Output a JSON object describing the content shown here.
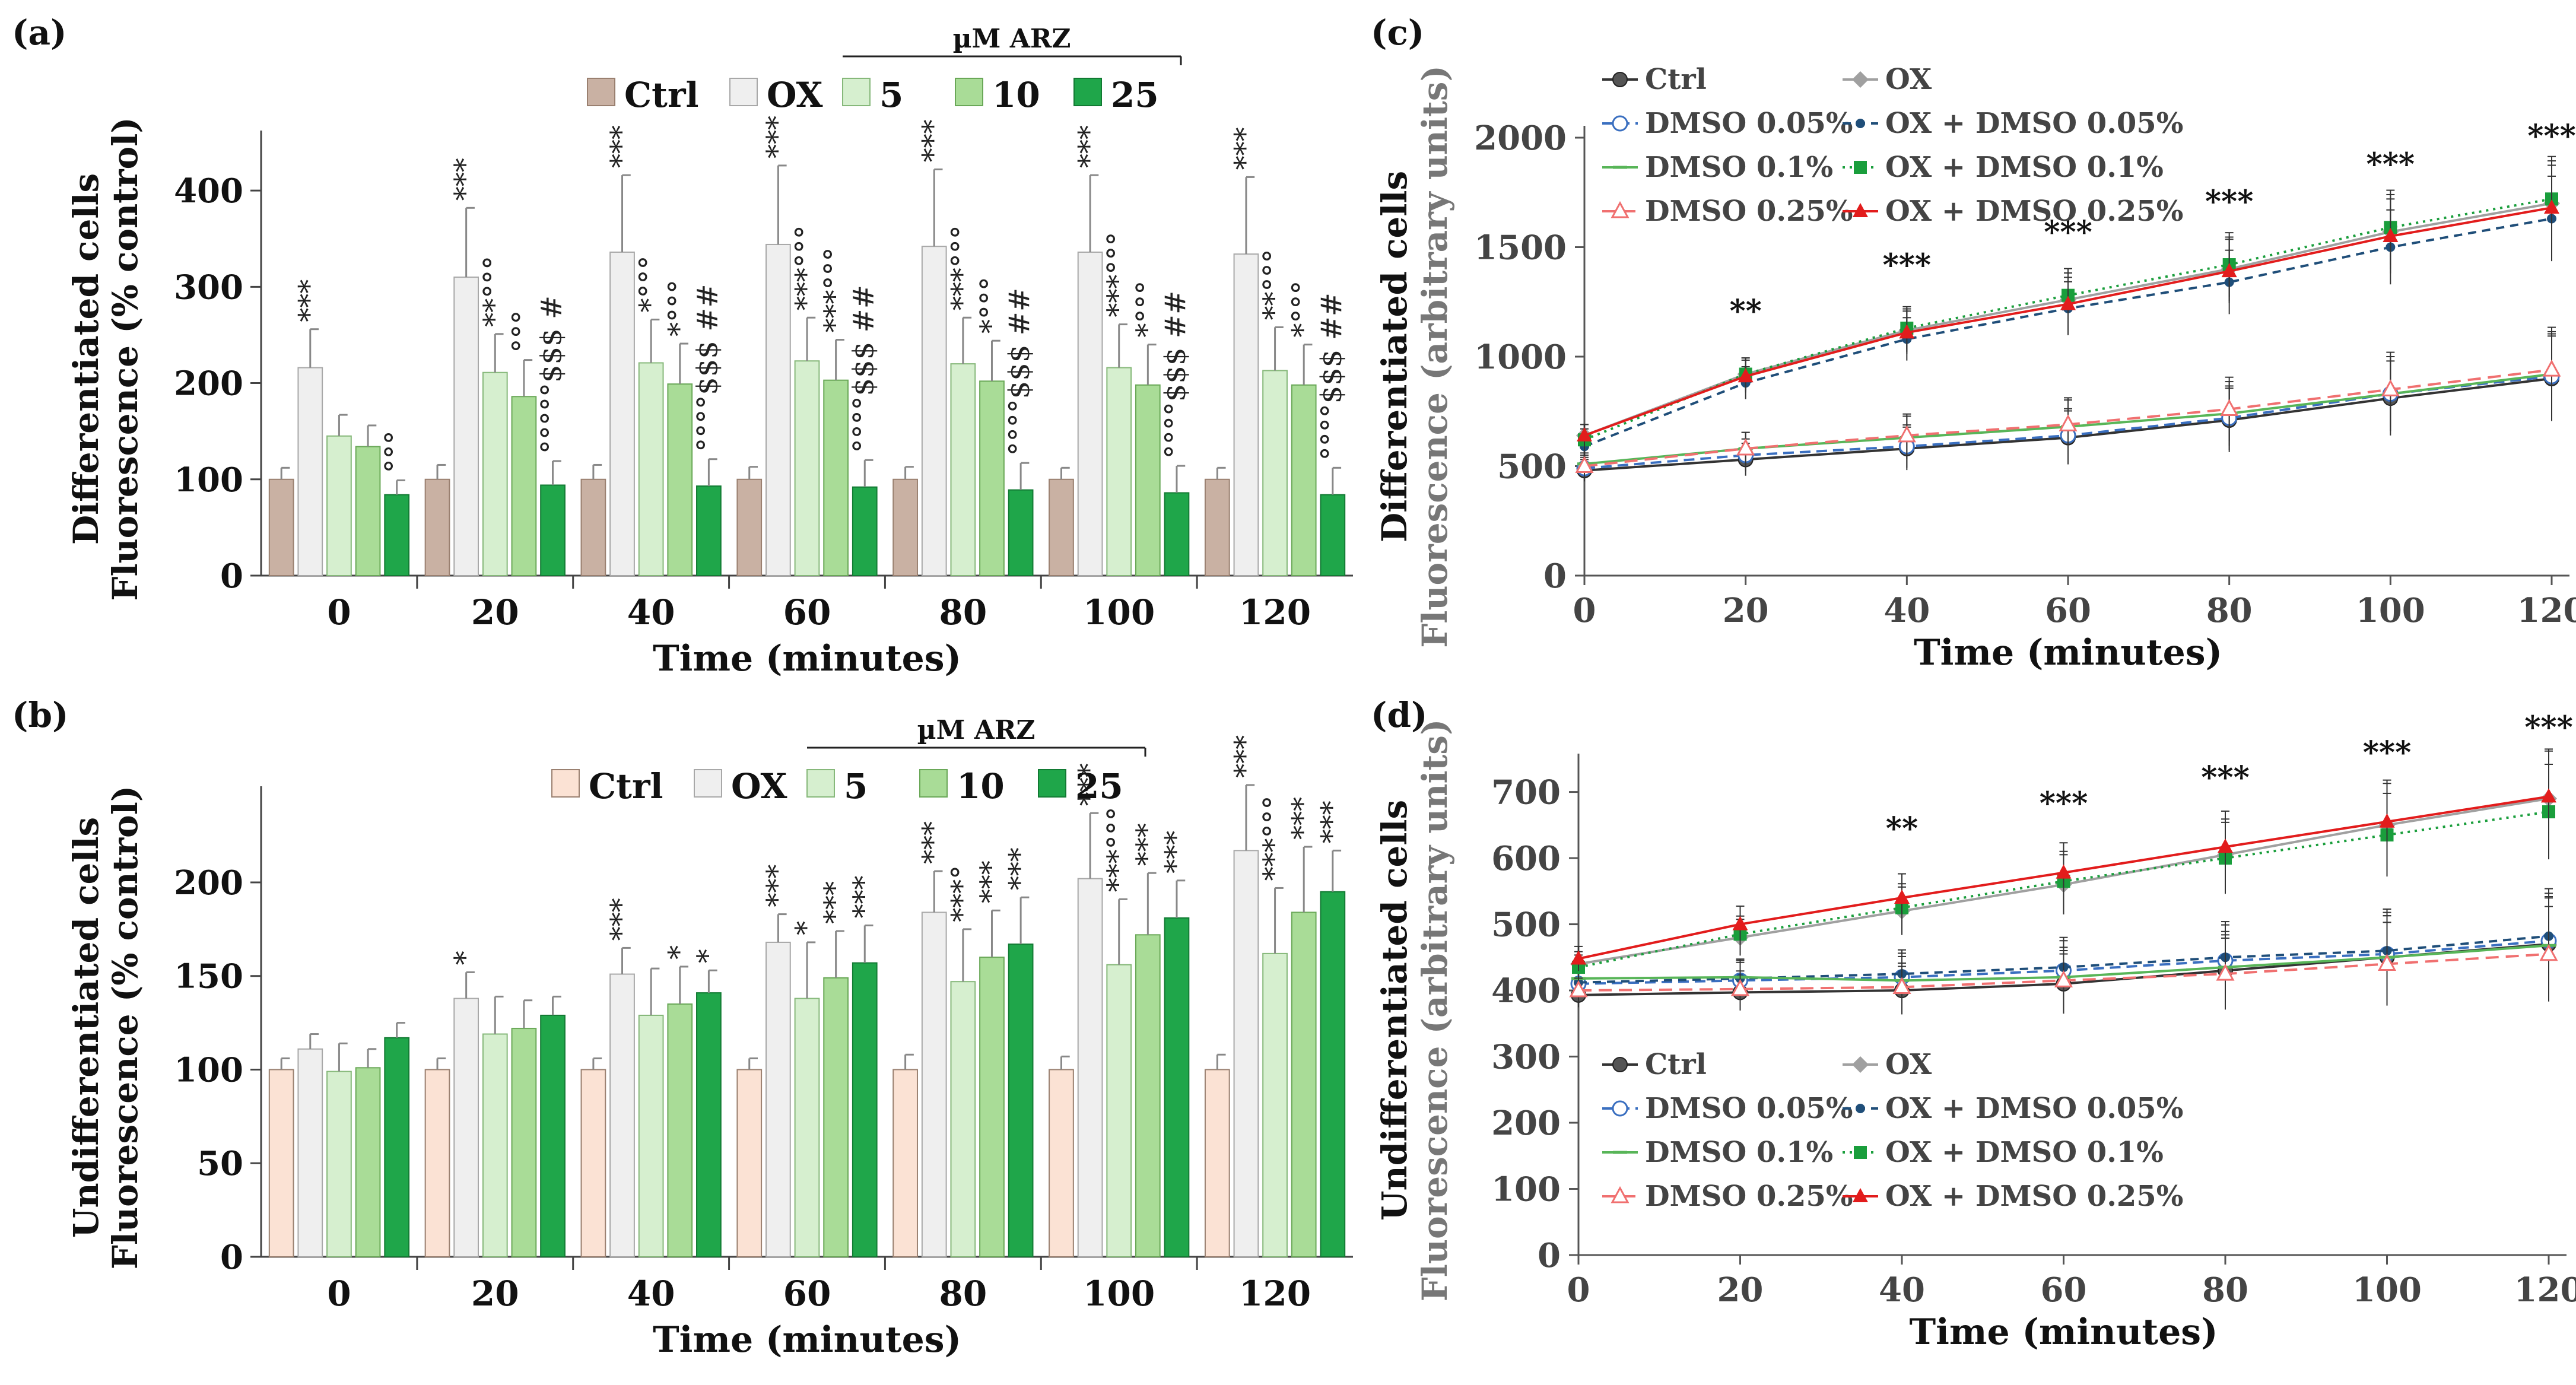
{
  "chart_data": [
    {
      "panel": "(a)",
      "type": "bar",
      "ylabel_lines": [
        "Differentiated cells",
        "Fluorescence (% control)"
      ],
      "xlabel": "Time (minutes)",
      "ylim": [
        0,
        450
      ],
      "yticks": [
        0,
        100,
        200,
        300,
        400
      ],
      "categories": [
        "0",
        "20",
        "40",
        "60",
        "80",
        "100",
        "120"
      ],
      "arz_label": "µM ARZ",
      "legend": [
        "Ctrl",
        "OX",
        "5",
        "10",
        "25"
      ],
      "series": [
        {
          "name": "Ctrl",
          "values": [
            100,
            100,
            100,
            100,
            100,
            100,
            100
          ],
          "errors": [
            12,
            15,
            15,
            13,
            13,
            12,
            12
          ]
        },
        {
          "name": "OX",
          "values": [
            216,
            310,
            336,
            344,
            342,
            336,
            334
          ],
          "errors": [
            40,
            72,
            80,
            82,
            80,
            80,
            80
          ]
        },
        {
          "name": "5",
          "values": [
            145,
            211,
            221,
            223,
            220,
            216,
            213
          ],
          "errors": [
            22,
            40,
            45,
            45,
            48,
            45,
            45
          ]
        },
        {
          "name": "10",
          "values": [
            134,
            186,
            199,
            203,
            202,
            198,
            198
          ],
          "errors": [
            22,
            38,
            42,
            42,
            42,
            42,
            42
          ]
        },
        {
          "name": "25",
          "values": [
            84,
            94,
            93,
            92,
            89,
            86,
            84
          ],
          "errors": [
            15,
            25,
            28,
            28,
            28,
            28,
            28
          ]
        }
      ],
      "annotations": [
        [
          "",
          "***",
          "",
          "",
          "°°°"
        ],
        [
          "",
          "***",
          "**°°°",
          "°°°",
          "°°°°°$$$ #"
        ],
        [
          "",
          "***",
          "*°°°",
          "*°°°",
          "°°°°$$$ ##"
        ],
        [
          "",
          "***",
          "***°°°",
          "***°°°",
          "°°°°$$$ ##"
        ],
        [
          "",
          "***",
          "***°°°",
          "*°°°",
          "°°°°$$$ ##"
        ],
        [
          "",
          "***",
          "***°°°",
          "*°°°",
          "°°°°$$$ ##"
        ],
        [
          "",
          "***",
          "**°°°",
          "*°°°",
          "°°°°$$$ ##"
        ]
      ]
    },
    {
      "panel": "(b)",
      "type": "bar",
      "ylabel_lines": [
        "Undifferentiated cells",
        "Fluorescence (% control)"
      ],
      "xlabel": "Time (minutes)",
      "ylim": [
        0,
        245
      ],
      "yticks": [
        0,
        50,
        100,
        150,
        200
      ],
      "categories": [
        "0",
        "20",
        "40",
        "60",
        "80",
        "100",
        "120"
      ],
      "arz_label": "µM ARZ",
      "legend": [
        "Ctrl",
        "OX",
        "5",
        "10",
        "25"
      ],
      "series": [
        {
          "name": "Ctrl",
          "values": [
            100,
            100,
            100,
            100,
            100,
            100,
            100
          ],
          "errors": [
            6,
            6,
            6,
            6,
            8,
            7,
            8
          ]
        },
        {
          "name": "OX",
          "values": [
            111,
            138,
            151,
            168,
            184,
            202,
            217
          ],
          "errors": [
            8,
            14,
            14,
            15,
            22,
            35,
            35
          ]
        },
        {
          "name": "5",
          "values": [
            99,
            119,
            129,
            138,
            147,
            156,
            162
          ],
          "errors": [
            15,
            20,
            25,
            30,
            28,
            35,
            35
          ]
        },
        {
          "name": "10",
          "values": [
            101,
            122,
            135,
            149,
            160,
            172,
            184
          ],
          "errors": [
            10,
            15,
            20,
            25,
            25,
            33,
            35
          ]
        },
        {
          "name": "25",
          "values": [
            117,
            129,
            141,
            157,
            167,
            181,
            195
          ],
          "errors": [
            8,
            10,
            12,
            20,
            25,
            20,
            22
          ]
        }
      ],
      "annotations": [
        [
          "",
          "",
          "",
          "",
          ""
        ],
        [
          "",
          "*",
          "",
          "",
          ""
        ],
        [
          "",
          "***",
          "",
          "*",
          "*"
        ],
        [
          "",
          "***",
          "*",
          "***",
          "***"
        ],
        [
          "",
          "***",
          "***°",
          "***",
          "***"
        ],
        [
          "",
          "***",
          "***°°°",
          "***",
          "***"
        ],
        [
          "",
          "***",
          "***°°°",
          "***",
          "***"
        ]
      ]
    },
    {
      "panel": "(c)",
      "type": "line",
      "ylabel_lines": [
        "Differentiated cells",
        "Fluorescence (arbitrary units)"
      ],
      "xlabel": "Time (minutes)",
      "x": [
        0,
        20,
        40,
        60,
        80,
        100,
        120
      ],
      "ylim": [
        0,
        2000
      ],
      "yticks": [
        0,
        500,
        1000,
        1500,
        2000
      ],
      "xticks": [
        0,
        20,
        40,
        60,
        80,
        100,
        120
      ],
      "series": [
        {
          "name": "Ctrl",
          "values": [
            480,
            530,
            580,
            630,
            710,
            810,
            900
          ]
        },
        {
          "name": "OX",
          "values": [
            640,
            920,
            1120,
            1260,
            1400,
            1570,
            1700
          ]
        },
        {
          "name": "DMSO 0.05%",
          "values": [
            490,
            550,
            590,
            640,
            720,
            830,
            910
          ]
        },
        {
          "name": "OX + DMSO 0.05%",
          "values": [
            590,
            880,
            1080,
            1220,
            1340,
            1500,
            1630
          ]
        },
        {
          "name": "DMSO 0.1%",
          "values": [
            510,
            580,
            630,
            680,
            740,
            830,
            920
          ]
        },
        {
          "name": "OX + DMSO 0.1%",
          "values": [
            620,
            920,
            1130,
            1280,
            1420,
            1590,
            1720
          ]
        },
        {
          "name": "DMSO 0.25%",
          "values": [
            500,
            580,
            640,
            690,
            760,
            850,
            940
          ]
        },
        {
          "name": "OX + DMSO 0.25%",
          "values": [
            640,
            910,
            1110,
            1240,
            1390,
            1550,
            1680
          ]
        }
      ],
      "sig_labels": [
        "",
        "**",
        "***",
        "***",
        "***",
        "***",
        "***"
      ]
    },
    {
      "panel": "(d)",
      "type": "line",
      "ylabel_lines": [
        "Undifferentiated cells",
        "Fluorescence (arbitrary units)"
      ],
      "xlabel": "Time (minutes)",
      "x": [
        0,
        20,
        40,
        60,
        80,
        100,
        120
      ],
      "ylim": [
        0,
        740
      ],
      "yticks": [
        0,
        100,
        200,
        300,
        400,
        500,
        600,
        700
      ],
      "xticks": [
        0,
        20,
        40,
        60,
        80,
        100,
        120
      ],
      "series": [
        {
          "name": "Ctrl",
          "values": [
            393,
            397,
            400,
            410,
            430,
            450,
            470
          ]
        },
        {
          "name": "OX",
          "values": [
            440,
            480,
            520,
            560,
            605,
            650,
            690
          ]
        },
        {
          "name": "DMSO 0.05%",
          "values": [
            410,
            415,
            420,
            430,
            445,
            455,
            475
          ]
        },
        {
          "name": "OX + DMSO 0.05%",
          "values": [
            412,
            418,
            425,
            435,
            450,
            460,
            482
          ]
        },
        {
          "name": "DMSO 0.1%",
          "values": [
            418,
            420,
            415,
            420,
            435,
            450,
            468
          ]
        },
        {
          "name": "OX + DMSO 0.1%",
          "values": [
            435,
            485,
            525,
            565,
            600,
            635,
            670
          ]
        },
        {
          "name": "DMSO 0.25%",
          "values": [
            400,
            402,
            405,
            415,
            425,
            440,
            455
          ]
        },
        {
          "name": "OX + DMSO 0.25%",
          "values": [
            448,
            500,
            540,
            578,
            617,
            655,
            693
          ]
        }
      ],
      "sig_labels": [
        "",
        "",
        "**",
        "***",
        "***",
        "***",
        "***"
      ]
    }
  ],
  "colors": {
    "ctrl_a": "#c9b1a3",
    "ctrl_b": "#fbe2d4",
    "ox": "#efefef",
    "arz5": "#d6efcf",
    "arz10": "#a9dc97",
    "arz25": "#1fa64a",
    "ctrl_line": "#333333",
    "ox_line": "#a0a0a0",
    "dmso005": "#3a6fc0",
    "ox_dmso005": "#1f4e79",
    "dmso01": "#58b558",
    "ox_dmso01": "#1a9e3c",
    "dmso025": "#f07070",
    "ox_dmso025": "#e21c1c"
  }
}
